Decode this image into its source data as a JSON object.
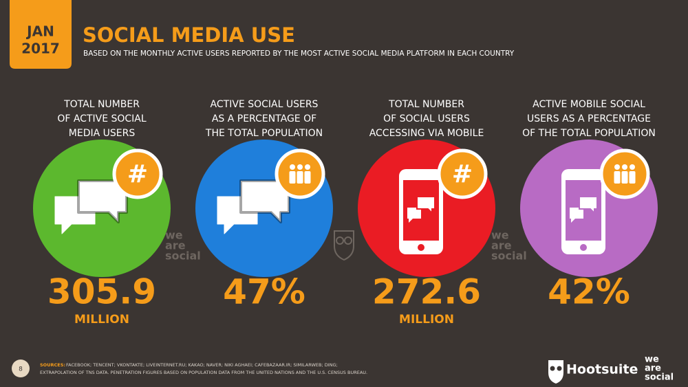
{
  "header": {
    "month": "JAN",
    "year": "2017",
    "title": "SOCIAL MEDIA USE",
    "subtitle": "BASED ON THE MONTHLY ACTIVE USERS REPORTED BY THE MOST ACTIVE SOCIAL MEDIA PLATFORM IN EACH COUNTRY"
  },
  "stats": [
    {
      "label": [
        "TOTAL NUMBER",
        "OF ACTIVE SOCIAL",
        "MEDIA USERS"
      ],
      "value": "305.9",
      "unit": "MILLION",
      "color": "#5cb82e",
      "badge": "#"
    },
    {
      "label": [
        "ACTIVE SOCIAL USERS",
        "AS A PERCENTAGE OF",
        "THE TOTAL POPULATION"
      ],
      "value": "47%",
      "color": "#1f7fdb"
    },
    {
      "label": [
        "TOTAL NUMBER",
        "OF SOCIAL USERS",
        "ACCESSING VIA MOBILE"
      ],
      "value": "272.6",
      "unit": "MILLION",
      "color": "#ea1c24",
      "badge": "#"
    },
    {
      "label": [
        "ACTIVE MOBILE SOCIAL",
        "USERS AS A PERCENTAGE",
        "OF THE TOTAL POPULATION"
      ],
      "value": "42%",
      "color": "#b86bc4"
    }
  ],
  "watermarks": [
    [
      "we",
      "are",
      "social"
    ],
    [
      "we",
      "are",
      "social"
    ]
  ],
  "footer": {
    "page": "8",
    "sources_label": "SOURCES:",
    "sources": [
      "FACEBOOK; TENCENT; VKONTAKTE; LIVEINTERNET.RU; KAKAO; NAVER; NIKI AGHAEI; CAFEBAZAAR.IR; SIMILARWEB; DING;",
      "EXTRAPOLATION OF TNS DATA. PENETRATION FIGURES BASED ON POPULATION DATA FROM THE UNITED NATIONS AND THE U.S. CENSUS BUREAU."
    ],
    "brand": "Hootsuite",
    "logo": [
      "we",
      "are",
      "social"
    ]
  }
}
